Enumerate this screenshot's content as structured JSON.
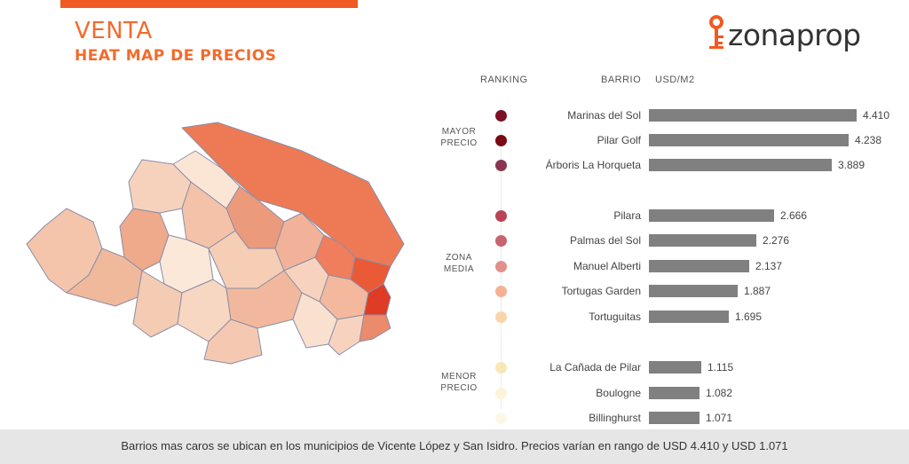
{
  "header": {
    "title": "VENTA",
    "subtitle": "HEAT MAP DE PRECIOS",
    "brand": "zonaprop",
    "accent_color": "#f15a22"
  },
  "columns": {
    "ranking": "RANKING",
    "barrio": "BARRIO",
    "value": "USD/M2"
  },
  "groups": {
    "high": [
      "MAYOR",
      "PRECIO"
    ],
    "mid": [
      "ZONA",
      "MEDIA"
    ],
    "low": [
      "MENOR",
      "PRECIO"
    ]
  },
  "chart_data": {
    "type": "bar",
    "orientation": "horizontal",
    "categories": [
      "Marinas del Sol",
      "Pilar Golf",
      "Árboris La Horqueta",
      "Pilara",
      "Palmas del Sol",
      "Manuel Alberti",
      "Tortugas Garden",
      "Tortuguitas",
      "La Cañada de Pilar",
      "Boulogne",
      "Billinghurst"
    ],
    "values": [
      4410,
      4238,
      3889,
      2666,
      2276,
      2137,
      1887,
      1695,
      1115,
      1082,
      1071
    ],
    "value_labels": [
      "4.410",
      "4.238",
      "3.889",
      "2.666",
      "2.276",
      "2.137",
      "1.887",
      "1.695",
      "1.115",
      "1.082",
      "1.071"
    ],
    "groups": [
      "high",
      "high",
      "high",
      "mid",
      "mid",
      "mid",
      "mid",
      "mid",
      "low",
      "low",
      "low"
    ],
    "rank_colors": [
      "#7b1025",
      "#7a0a14",
      "#8b3550",
      "#b84455",
      "#c8636f",
      "#e2908c",
      "#f4b193",
      "#fbd4ad",
      "#f8e7b6",
      "#fbf4d8",
      "#fcf7e6"
    ],
    "bar_color": "#808080",
    "xlim": [
      0,
      4410
    ],
    "ylabel": "USD/M2"
  },
  "footer": {
    "text": "Barrios mas caros se ubican en los municipios de Vicente López y San Isidro. Precios varían en rango de USD 4.410 y USD 1.071"
  }
}
